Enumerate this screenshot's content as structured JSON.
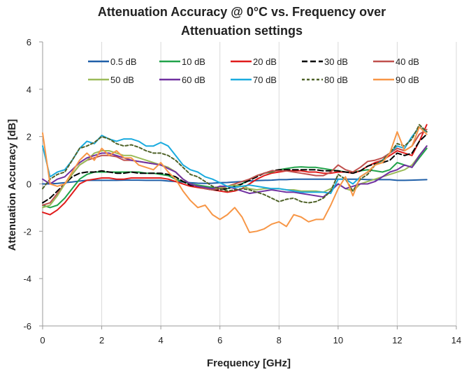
{
  "chart_data": {
    "type": "line",
    "title": "Attenuation Accuracy @ 0°C vs. Frequency over Attenuation settings",
    "title_lines": [
      "Attenuation Accuracy @ 0°C vs. Frequency over",
      "Attenuation settings"
    ],
    "xlabel": "Frequency [GHz]",
    "ylabel": "Attenuation Accuracy [dB]",
    "xlim": [
      0,
      14
    ],
    "ylim": [
      -6,
      6
    ],
    "xticks": [
      "0",
      "2",
      "4",
      "6",
      "8",
      "10",
      "12",
      "14"
    ],
    "yticks": [
      "6",
      "4",
      "2",
      "0",
      "-2",
      "-4",
      "-6"
    ],
    "grid": "vertical",
    "legend_position": "top",
    "x": [
      0,
      0.25,
      0.5,
      0.75,
      1,
      1.25,
      1.5,
      1.75,
      2,
      2.25,
      2.5,
      2.75,
      3,
      3.25,
      3.5,
      3.75,
      4,
      4.25,
      4.5,
      4.75,
      5,
      5.25,
      5.5,
      5.75,
      6,
      6.25,
      6.5,
      6.75,
      7,
      7.25,
      7.5,
      7.75,
      8,
      8.25,
      8.5,
      8.75,
      9,
      9.25,
      9.5,
      9.75,
      10,
      10.25,
      10.5,
      10.75,
      11,
      11.25,
      11.5,
      11.75,
      12,
      12.25,
      12.5,
      12.75,
      13
    ],
    "series": [
      {
        "name": "0.5 dB",
        "color": "#1f5fa8",
        "dash": "solid",
        "values": [
          0.0,
          0.0,
          0.02,
          0.05,
          0.08,
          0.12,
          0.15,
          0.15,
          0.15,
          0.15,
          0.15,
          0.16,
          0.16,
          0.16,
          0.15,
          0.15,
          0.15,
          0.12,
          0.1,
          0.08,
          0.05,
          0.03,
          0.02,
          0.03,
          0.05,
          0.06,
          0.08,
          0.1,
          0.12,
          0.14,
          0.15,
          0.16,
          0.18,
          0.18,
          0.2,
          0.2,
          0.2,
          0.2,
          0.2,
          0.2,
          0.2,
          0.2,
          0.2,
          0.2,
          0.18,
          0.18,
          0.18,
          0.18,
          0.15,
          0.15,
          0.16,
          0.17,
          0.18
        ]
      },
      {
        "name": "10 dB",
        "color": "#21a34a",
        "dash": "solid",
        "values": [
          -0.9,
          -1.0,
          -0.9,
          -0.6,
          -0.2,
          0.2,
          0.4,
          0.5,
          0.5,
          0.5,
          0.5,
          0.5,
          0.5,
          0.5,
          0.45,
          0.45,
          0.4,
          0.35,
          0.2,
          0.1,
          0.0,
          -0.05,
          -0.1,
          -0.15,
          -0.2,
          -0.2,
          -0.1,
          0.0,
          0.2,
          0.35,
          0.45,
          0.5,
          0.6,
          0.65,
          0.7,
          0.72,
          0.7,
          0.7,
          0.65,
          0.6,
          0.55,
          0.5,
          0.5,
          0.55,
          0.6,
          0.55,
          0.5,
          0.6,
          0.9,
          0.8,
          0.7,
          1.1,
          1.5
        ]
      },
      {
        "name": "20 dB",
        "color": "#e01b1b",
        "dash": "solid",
        "values": [
          -1.2,
          -1.3,
          -1.1,
          -0.8,
          -0.4,
          0.0,
          0.15,
          0.2,
          0.25,
          0.25,
          0.2,
          0.2,
          0.25,
          0.25,
          0.25,
          0.25,
          0.25,
          0.2,
          0.1,
          0.0,
          -0.1,
          -0.15,
          -0.2,
          -0.25,
          -0.3,
          -0.35,
          -0.3,
          -0.2,
          0.0,
          0.2,
          0.35,
          0.45,
          0.5,
          0.55,
          0.55,
          0.55,
          0.5,
          0.5,
          0.45,
          0.45,
          0.5,
          0.5,
          0.45,
          0.55,
          0.75,
          0.9,
          1.0,
          1.2,
          1.4,
          1.3,
          1.2,
          1.8,
          2.5
        ]
      },
      {
        "name": "30 dB",
        "color": "#000000",
        "dash": "long",
        "values": [
          -0.8,
          -0.6,
          -0.3,
          0.0,
          0.3,
          0.45,
          0.5,
          0.5,
          0.55,
          0.5,
          0.45,
          0.45,
          0.5,
          0.45,
          0.45,
          0.45,
          0.45,
          0.4,
          0.3,
          0.1,
          -0.05,
          -0.1,
          -0.2,
          -0.25,
          -0.25,
          -0.2,
          -0.1,
          0.0,
          0.15,
          0.3,
          0.45,
          0.55,
          0.6,
          0.6,
          0.6,
          0.6,
          0.6,
          0.6,
          0.55,
          0.55,
          0.55,
          0.5,
          0.45,
          0.55,
          0.75,
          0.85,
          0.9,
          1.0,
          1.3,
          1.2,
          1.3,
          1.8,
          2.1
        ]
      },
      {
        "name": "40 dB",
        "color": "#c0504d",
        "dash": "solid",
        "values": [
          -0.9,
          -0.8,
          -0.4,
          0.0,
          0.4,
          0.8,
          1.0,
          1.1,
          1.2,
          1.2,
          1.15,
          1.0,
          1.0,
          0.95,
          0.9,
          0.85,
          0.8,
          0.7,
          0.5,
          0.2,
          0.0,
          -0.1,
          -0.2,
          -0.25,
          -0.2,
          -0.1,
          0.0,
          0.1,
          0.2,
          0.35,
          0.45,
          0.55,
          0.55,
          0.55,
          0.5,
          0.45,
          0.4,
          0.35,
          0.35,
          0.5,
          0.8,
          0.6,
          0.5,
          0.7,
          0.95,
          1.0,
          1.1,
          1.3,
          1.5,
          1.4,
          1.6,
          2.1,
          2.3
        ]
      },
      {
        "name": "50 dB",
        "color": "#9bbb59",
        "dash": "solid",
        "values": [
          -1.0,
          -0.9,
          -0.5,
          0.0,
          0.4,
          0.8,
          1.0,
          1.3,
          1.4,
          1.4,
          1.3,
          1.2,
          1.2,
          1.1,
          1.0,
          0.9,
          0.8,
          0.7,
          0.5,
          0.2,
          0.0,
          -0.1,
          -0.15,
          -0.2,
          -0.15,
          -0.1,
          -0.05,
          -0.1,
          -0.2,
          -0.25,
          -0.2,
          -0.2,
          -0.2,
          -0.25,
          -0.25,
          -0.3,
          -0.3,
          -0.3,
          -0.35,
          -0.2,
          0.0,
          -0.2,
          -0.3,
          0.0,
          0.1,
          0.2,
          0.3,
          0.4,
          0.5,
          0.6,
          0.8,
          1.2,
          1.6
        ]
      },
      {
        "name": "60 dB",
        "color": "#7030a0",
        "dash": "solid",
        "values": [
          0.2,
          0.0,
          0.2,
          0.3,
          0.6,
          0.9,
          1.1,
          1.2,
          1.3,
          1.3,
          1.2,
          1.1,
          1.0,
          0.95,
          0.9,
          0.85,
          0.8,
          0.65,
          0.5,
          0.2,
          0.0,
          -0.1,
          -0.15,
          -0.2,
          -0.1,
          -0.1,
          -0.2,
          -0.3,
          -0.4,
          -0.35,
          -0.3,
          -0.25,
          -0.3,
          -0.35,
          -0.35,
          -0.4,
          -0.45,
          -0.5,
          -0.55,
          -0.3,
          0.0,
          -0.2,
          -0.1,
          0.0,
          0.0,
          0.1,
          0.3,
          0.5,
          0.6,
          0.8,
          0.7,
          1.2,
          1.6
        ]
      },
      {
        "name": "70 dB",
        "color": "#1aabdf",
        "dash": "solid",
        "values": [
          1.6,
          0.3,
          0.5,
          0.6,
          1.0,
          1.5,
          1.8,
          1.7,
          2.05,
          1.9,
          1.8,
          1.9,
          1.9,
          1.8,
          1.6,
          1.6,
          1.75,
          1.6,
          1.2,
          0.8,
          0.6,
          0.5,
          0.3,
          0.2,
          0.05,
          -0.1,
          -0.15,
          -0.1,
          -0.05,
          -0.1,
          -0.15,
          -0.2,
          -0.2,
          -0.25,
          -0.3,
          -0.35,
          -0.35,
          -0.35,
          -0.35,
          -0.4,
          0.2,
          0.2,
          0.0,
          0.3,
          0.5,
          0.8,
          1.0,
          1.3,
          1.6,
          1.5,
          2.0,
          2.4,
          2.2
        ]
      },
      {
        "name": "80 dB",
        "color": "#4f6228",
        "dash": "short",
        "values": [
          -0.2,
          0.2,
          0.4,
          0.5,
          1.0,
          1.5,
          1.6,
          1.75,
          2.0,
          1.9,
          1.7,
          1.6,
          1.65,
          1.55,
          1.4,
          1.3,
          1.3,
          1.2,
          1.0,
          0.7,
          0.4,
          0.3,
          0.1,
          -0.1,
          -0.2,
          -0.3,
          -0.25,
          -0.2,
          -0.25,
          -0.35,
          -0.45,
          -0.6,
          -0.75,
          -0.65,
          -0.6,
          -0.75,
          -0.8,
          -0.75,
          -0.6,
          -0.3,
          0.4,
          0.2,
          -0.3,
          0.2,
          0.4,
          0.8,
          1.0,
          1.3,
          1.7,
          1.6,
          1.9,
          2.5,
          2.2
        ]
      },
      {
        "name": "90 dB",
        "color": "#f79646",
        "dash": "solid",
        "values": [
          2.15,
          0.0,
          -0.1,
          0.0,
          0.5,
          1.0,
          1.3,
          1.0,
          1.5,
          1.2,
          1.4,
          1.1,
          1.1,
          0.8,
          0.7,
          0.6,
          0.9,
          0.5,
          0.2,
          -0.3,
          -0.7,
          -1.0,
          -0.9,
          -1.3,
          -1.5,
          -1.3,
          -1.0,
          -1.4,
          -2.05,
          -2.0,
          -1.9,
          -1.7,
          -1.6,
          -1.8,
          -1.3,
          -1.4,
          -1.6,
          -1.5,
          -1.5,
          -0.9,
          -0.2,
          0.3,
          -0.5,
          0.3,
          0.5,
          0.8,
          0.9,
          1.3,
          2.2,
          1.4,
          1.6,
          2.4,
          2.1
        ]
      }
    ]
  }
}
